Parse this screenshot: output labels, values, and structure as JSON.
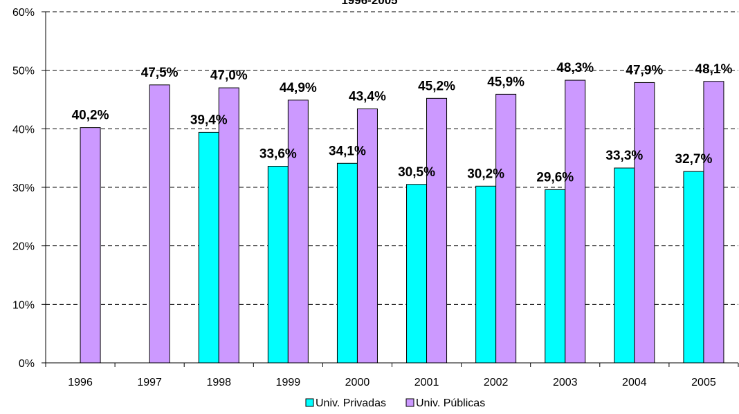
{
  "chart_data": {
    "type": "bar",
    "title": "1996-2005",
    "categories": [
      "1996",
      "1997",
      "1998",
      "1999",
      "2000",
      "2001",
      "2002",
      "2003",
      "2004",
      "2005"
    ],
    "series": [
      {
        "name": "Univ. Privadas",
        "color": "#00FFFF",
        "values": [
          null,
          null,
          39.4,
          33.6,
          34.1,
          30.5,
          30.2,
          29.6,
          33.3,
          32.7
        ],
        "labels": [
          "",
          "",
          "39,4%",
          "33,6%",
          "34,1%",
          "30,5%",
          "30,2%",
          "29,6%",
          "33,3%",
          "32,7%"
        ]
      },
      {
        "name": "Univ. Públicas",
        "color": "#CC99FF",
        "values": [
          40.2,
          47.5,
          47.0,
          44.9,
          43.4,
          45.2,
          45.9,
          48.3,
          47.9,
          48.1
        ],
        "labels": [
          "40,2%",
          "47,5%",
          "47,0%",
          "44,9%",
          "43,4%",
          "45,2%",
          "45,9%",
          "48,3%",
          "47,9%",
          "48,1%"
        ]
      }
    ],
    "y_ticks": [
      "0%",
      "10%",
      "20%",
      "30%",
      "40%",
      "50%",
      "60%"
    ],
    "ylim": [
      0,
      60
    ],
    "grid": "dashed horizontal",
    "legend": "bottom-center"
  }
}
